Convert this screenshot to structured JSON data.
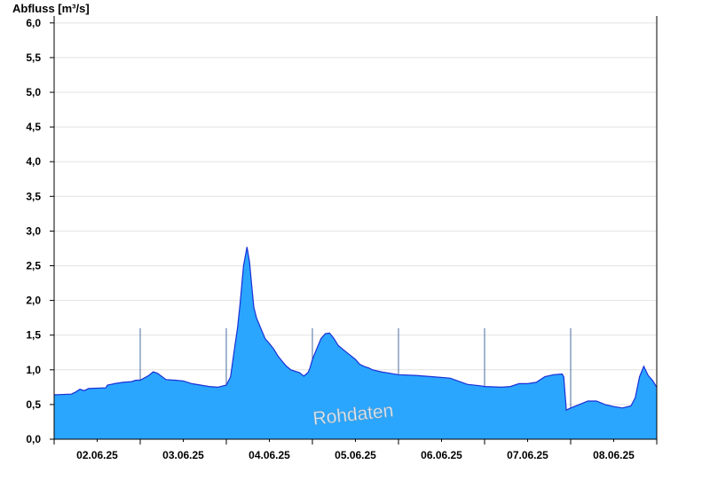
{
  "chart_data": {
    "type": "area",
    "ylabel": "Abfluss [m³/s]",
    "watermark": "Rohdaten",
    "ylim": [
      0,
      6.1
    ],
    "y_ticks": [
      "0,0",
      "0,5",
      "1,0",
      "1,5",
      "2,0",
      "2,5",
      "3,0",
      "3,5",
      "4,0",
      "4,5",
      "5,0",
      "5,5",
      "6,0"
    ],
    "x_range_days": [
      0,
      7
    ],
    "x_ticks": [
      "02.06.25",
      "03.06.25",
      "04.06.25",
      "05.06.25",
      "06.06.25",
      "07.06.25",
      "08.06.25"
    ],
    "grid": true,
    "fill_color": "#2aa6ff",
    "line_color": "#1a2fd6",
    "series": [
      {
        "x": [
          0,
          0.2,
          0.25,
          0.3,
          0.35,
          0.4,
          0.6,
          0.62,
          0.7,
          0.8,
          0.9,
          0.95,
          1.0,
          1.1,
          1.15,
          1.2,
          1.3,
          1.4,
          1.5,
          1.6,
          1.7,
          1.8,
          1.9,
          2.0,
          2.05,
          2.1,
          2.13,
          2.16,
          2.2,
          2.24,
          2.27,
          2.3,
          2.32,
          2.35,
          2.4,
          2.45,
          2.5,
          2.55,
          2.6,
          2.65,
          2.7,
          2.75,
          2.8,
          2.85,
          2.9,
          2.95,
          2.97,
          3.0,
          3.05,
          3.1,
          3.15,
          3.2,
          3.25,
          3.3,
          3.35,
          3.4,
          3.45,
          3.5,
          3.55,
          3.6,
          3.65,
          3.7,
          3.8,
          3.9,
          4.0,
          4.2,
          4.4,
          4.6,
          4.8,
          4.95,
          5.0,
          5.2,
          5.3,
          5.4,
          5.5,
          5.6,
          5.7,
          5.8,
          5.9,
          5.92,
          5.95,
          6.0,
          6.1,
          6.2,
          6.3,
          6.4,
          6.5,
          6.6,
          6.7,
          6.75,
          6.8,
          6.85,
          6.9,
          6.95,
          7.0
        ],
        "y": [
          0.64,
          0.65,
          0.68,
          0.72,
          0.7,
          0.73,
          0.74,
          0.78,
          0.8,
          0.82,
          0.83,
          0.85,
          0.85,
          0.92,
          0.97,
          0.95,
          0.86,
          0.85,
          0.84,
          0.8,
          0.78,
          0.76,
          0.75,
          0.78,
          0.9,
          1.35,
          1.6,
          1.95,
          2.5,
          2.77,
          2.55,
          2.15,
          1.9,
          1.75,
          1.6,
          1.45,
          1.38,
          1.3,
          1.2,
          1.12,
          1.05,
          1.0,
          0.98,
          0.96,
          0.91,
          0.96,
          1.02,
          1.15,
          1.3,
          1.45,
          1.52,
          1.53,
          1.45,
          1.35,
          1.3,
          1.25,
          1.2,
          1.15,
          1.08,
          1.05,
          1.03,
          1.0,
          0.97,
          0.95,
          0.93,
          0.92,
          0.9,
          0.88,
          0.79,
          0.77,
          0.76,
          0.75,
          0.76,
          0.8,
          0.8,
          0.82,
          0.9,
          0.93,
          0.94,
          0.9,
          0.42,
          0.45,
          0.5,
          0.55,
          0.55,
          0.5,
          0.47,
          0.45,
          0.48,
          0.6,
          0.9,
          1.05,
          0.92,
          0.85,
          0.75
        ]
      }
    ]
  }
}
